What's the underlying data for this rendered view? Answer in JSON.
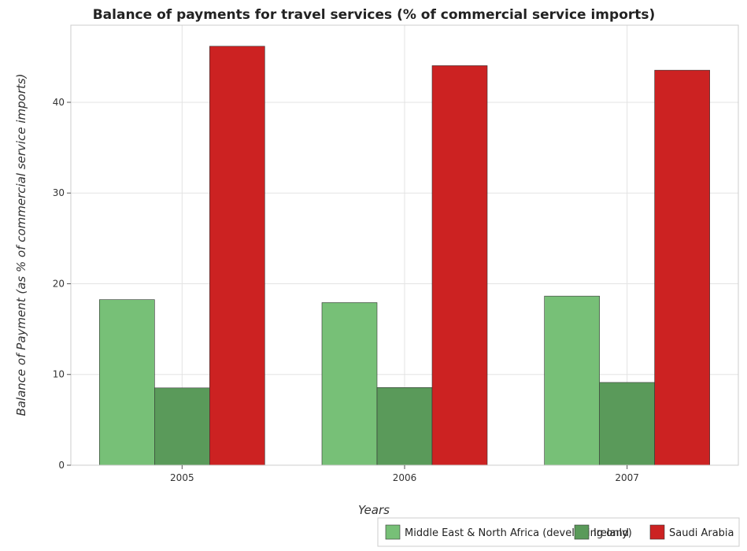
{
  "chart_data": {
    "type": "bar",
    "title": "Balance of payments for travel services (% of commercial service imports)",
    "xlabel": "Years",
    "ylabel": "Balance of Payment (as % of commercial service imports)",
    "categories": [
      "2005",
      "2006",
      "2007"
    ],
    "ylim": [
      0,
      48.5
    ],
    "yticks": [
      0,
      10,
      20,
      30,
      40
    ],
    "grid": true,
    "legend_position": "bottom-right",
    "series": [
      {
        "name": "Middle East & North Africa (developing only)",
        "color": "#77c077",
        "values": [
          18.25,
          17.92,
          18.64
        ]
      },
      {
        "name": "Ireland",
        "color": "#5a9a5a",
        "values": [
          8.52,
          8.56,
          9.12
        ]
      },
      {
        "name": "Saudi Arabia",
        "color": "#cc2222",
        "values": [
          46.18,
          44.04,
          43.54
        ]
      }
    ]
  }
}
